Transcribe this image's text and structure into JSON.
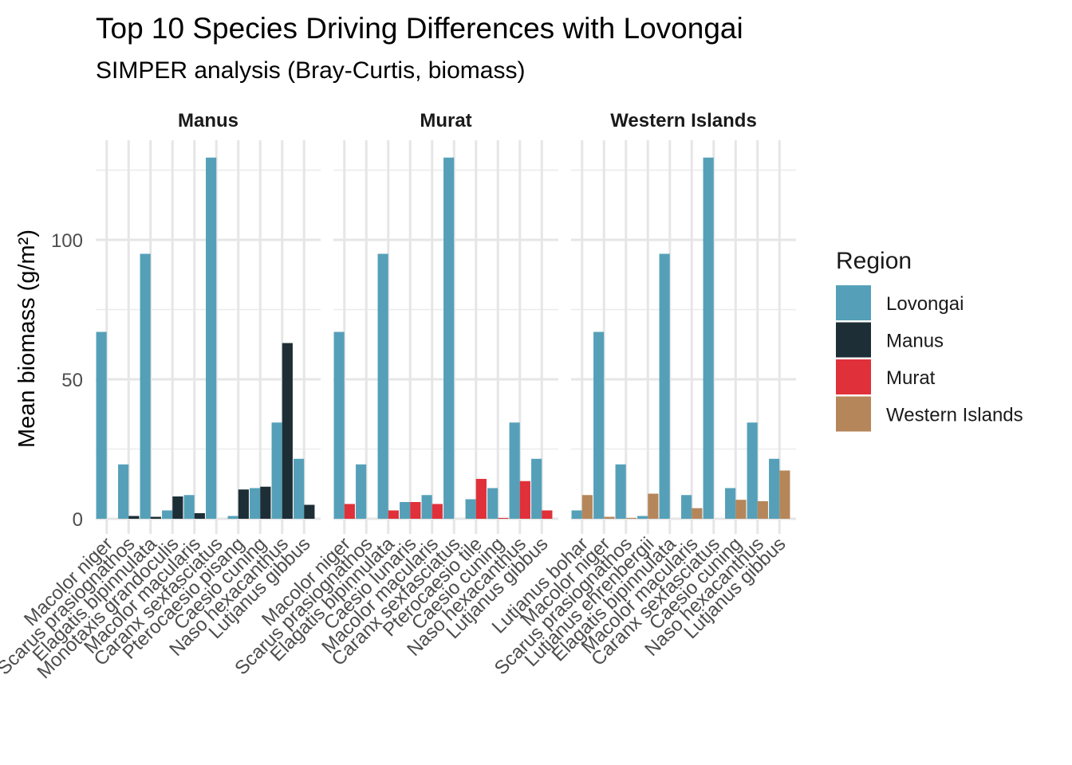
{
  "chart_data": {
    "type": "bar",
    "title": "Top 10 Species Driving Differences with Lovongai",
    "subtitle": "SIMPER analysis (Bray-Curtis, biomass)",
    "xlabel": "",
    "ylabel": "Mean biomass (g/m²)",
    "ylim": [
      0,
      135
    ],
    "yticks": [
      0,
      50,
      100
    ],
    "grid": true,
    "legend": {
      "title": "Region",
      "position": "right",
      "entries": [
        {
          "name": "Lovongai",
          "color": "#55A0B8"
        },
        {
          "name": "Manus",
          "color": "#1D2E36"
        },
        {
          "name": "Murat",
          "color": "#E0303A"
        },
        {
          "name": "Western Islands",
          "color": "#B5865A"
        }
      ]
    },
    "facets": [
      {
        "name": "Manus",
        "categories": [
          "Macolor niger",
          "Scarus prasiognathos",
          "Elagatis bipinnulata",
          "Monotaxis grandoculis",
          "Macolor macularis",
          "Caranx sexfasciatus",
          "Pterocaesio pisang",
          "Caesio cuning",
          "Naso hexacanthus",
          "Lutjanus gibbus"
        ],
        "series": [
          {
            "name": "Lovongai",
            "values": [
              67,
              19.5,
              95,
              3,
              8.5,
              129.5,
              1,
              11,
              34.5,
              21.5
            ]
          },
          {
            "name": "Manus",
            "values": [
              0,
              1,
              0.7,
              8,
              2,
              0,
              10.5,
              11.5,
              63,
              5
            ]
          }
        ]
      },
      {
        "name": "Murat",
        "categories": [
          "Macolor niger",
          "Scarus prasiognathos",
          "Elagatis bipinnulata",
          "Caesio lunaris",
          "Macolor macularis",
          "Caranx sexfasciatus",
          "Pterocaesio tile",
          "Caesio cuning",
          "Naso hexacanthus",
          "Lutjanus gibbus"
        ],
        "series": [
          {
            "name": "Lovongai",
            "values": [
              67,
              19.5,
              95,
              6,
              8.5,
              129.5,
              7,
              11,
              34.5,
              21.5
            ]
          },
          {
            "name": "Murat",
            "values": [
              5.3,
              0,
              3,
              6,
              5.3,
              0,
              14.3,
              0.3,
              13.5,
              3
            ]
          }
        ]
      },
      {
        "name": "Western Islands",
        "categories": [
          "Lutjanus bohar",
          "Macolor niger",
          "Scarus prasiognathos",
          "Lutjanus ehrenbergii",
          "Elagatis bipinnulata",
          "Macolor macularis",
          "Caranx sexfasciatus",
          "Caesio cuning",
          "Naso hexacanthus",
          "Lutjanus gibbus"
        ],
        "series": [
          {
            "name": "Lovongai",
            "values": [
              3,
              67,
              19.5,
              1,
              95,
              8.5,
              129.5,
              11,
              34.5,
              21.5
            ]
          },
          {
            "name": "Western Islands",
            "values": [
              8.5,
              0.7,
              0.3,
              9,
              0,
              3.8,
              0,
              6.8,
              6.3,
              17.3
            ]
          }
        ]
      }
    ]
  }
}
